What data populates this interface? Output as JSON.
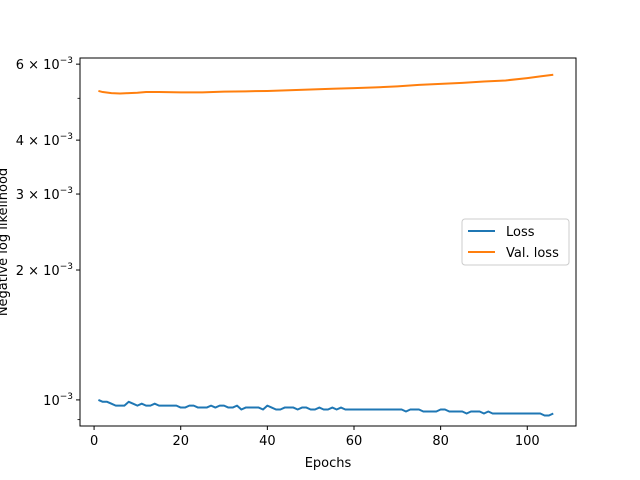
{
  "chart_data": {
    "type": "line",
    "xlabel": "Epochs",
    "ylabel": "Negative log likelihood",
    "yscale": "log",
    "xlim": [
      -3.25,
      111.25
    ],
    "ylim": [
      0.00087,
      0.0062
    ],
    "x_ticks": [
      {
        "value": 0,
        "label": "0"
      },
      {
        "value": 20,
        "label": "20"
      },
      {
        "value": 40,
        "label": "40"
      },
      {
        "value": 60,
        "label": "60"
      },
      {
        "value": 80,
        "label": "80"
      },
      {
        "value": 100,
        "label": "100"
      }
    ],
    "y_major_ticks": [
      {
        "value": 0.001,
        "mantissa": "10",
        "exponent": "−3",
        "prefix": ""
      },
      {
        "value": 0.006,
        "mantissa": "10",
        "exponent": "−3",
        "prefix": "6 × "
      },
      {
        "value": 0.004,
        "mantissa": "10",
        "exponent": "−3",
        "prefix": "4 × "
      },
      {
        "value": 0.003,
        "mantissa": "10",
        "exponent": "−3",
        "prefix": "3 × "
      },
      {
        "value": 0.002,
        "mantissa": "10",
        "exponent": "−3",
        "prefix": "2 × "
      }
    ],
    "y_minor_ticks": [
      0.0009,
      0.005
    ],
    "grid": false,
    "legend_position": "center-right",
    "series": [
      {
        "name": "Loss",
        "color": "#1f77b4",
        "x": [
          1,
          2,
          3,
          4,
          5,
          6,
          7,
          8,
          9,
          10,
          11,
          12,
          13,
          14,
          15,
          16,
          17,
          18,
          19,
          20,
          21,
          22,
          23,
          24,
          25,
          26,
          27,
          28,
          29,
          30,
          31,
          32,
          33,
          34,
          35,
          36,
          37,
          38,
          39,
          40,
          41,
          42,
          43,
          44,
          45,
          46,
          47,
          48,
          49,
          50,
          51,
          52,
          53,
          54,
          55,
          56,
          57,
          58,
          59,
          60,
          61,
          62,
          63,
          64,
          65,
          66,
          67,
          68,
          69,
          70,
          71,
          72,
          73,
          74,
          75,
          76,
          77,
          78,
          79,
          80,
          81,
          82,
          83,
          84,
          85,
          86,
          87,
          88,
          89,
          90,
          91,
          92,
          93,
          94,
          95,
          96,
          97,
          98,
          99,
          100,
          101,
          102,
          103,
          104,
          105,
          106
        ],
        "values": [
          0.001,
          0.00099,
          0.00099,
          0.00098,
          0.00097,
          0.00097,
          0.00097,
          0.00099,
          0.00098,
          0.00097,
          0.00098,
          0.00097,
          0.00097,
          0.00098,
          0.00097,
          0.00097,
          0.00097,
          0.00097,
          0.00097,
          0.00096,
          0.00096,
          0.00097,
          0.00097,
          0.00096,
          0.00096,
          0.00096,
          0.00097,
          0.00096,
          0.00097,
          0.00097,
          0.00096,
          0.00096,
          0.00097,
          0.00095,
          0.00096,
          0.00096,
          0.00096,
          0.00096,
          0.00095,
          0.00097,
          0.00096,
          0.00095,
          0.00095,
          0.00096,
          0.00096,
          0.00096,
          0.00095,
          0.00096,
          0.00096,
          0.00095,
          0.00095,
          0.00096,
          0.00095,
          0.00095,
          0.00096,
          0.00095,
          0.00096,
          0.00095,
          0.00095,
          0.00095,
          0.00095,
          0.00095,
          0.00095,
          0.00095,
          0.00095,
          0.00095,
          0.00095,
          0.00095,
          0.00095,
          0.00095,
          0.00095,
          0.00094,
          0.00095,
          0.00095,
          0.00095,
          0.00094,
          0.00094,
          0.00094,
          0.00094,
          0.00095,
          0.00095,
          0.00094,
          0.00094,
          0.00094,
          0.00094,
          0.00093,
          0.00094,
          0.00094,
          0.00094,
          0.00093,
          0.00094,
          0.00093,
          0.00093,
          0.00093,
          0.00093,
          0.00093,
          0.00093,
          0.00093,
          0.00093,
          0.00093,
          0.00093,
          0.00093,
          0.00093,
          0.00092,
          0.00092,
          0.00093
        ]
      },
      {
        "name": "Val. loss",
        "color": "#ff7f0e",
        "x": [
          1,
          2,
          4,
          6,
          8,
          10,
          12,
          15,
          20,
          25,
          30,
          35,
          40,
          45,
          50,
          55,
          60,
          65,
          70,
          75,
          80,
          85,
          90,
          95,
          100,
          103,
          106
        ],
        "values": [
          0.0052,
          0.00517,
          0.00514,
          0.00513,
          0.00514,
          0.00515,
          0.00517,
          0.00517,
          0.00516,
          0.00516,
          0.00518,
          0.00519,
          0.0052,
          0.00522,
          0.00524,
          0.00526,
          0.00528,
          0.0053,
          0.00533,
          0.00537,
          0.0054,
          0.00543,
          0.00547,
          0.0055,
          0.00557,
          0.00562,
          0.00567
        ]
      }
    ]
  }
}
